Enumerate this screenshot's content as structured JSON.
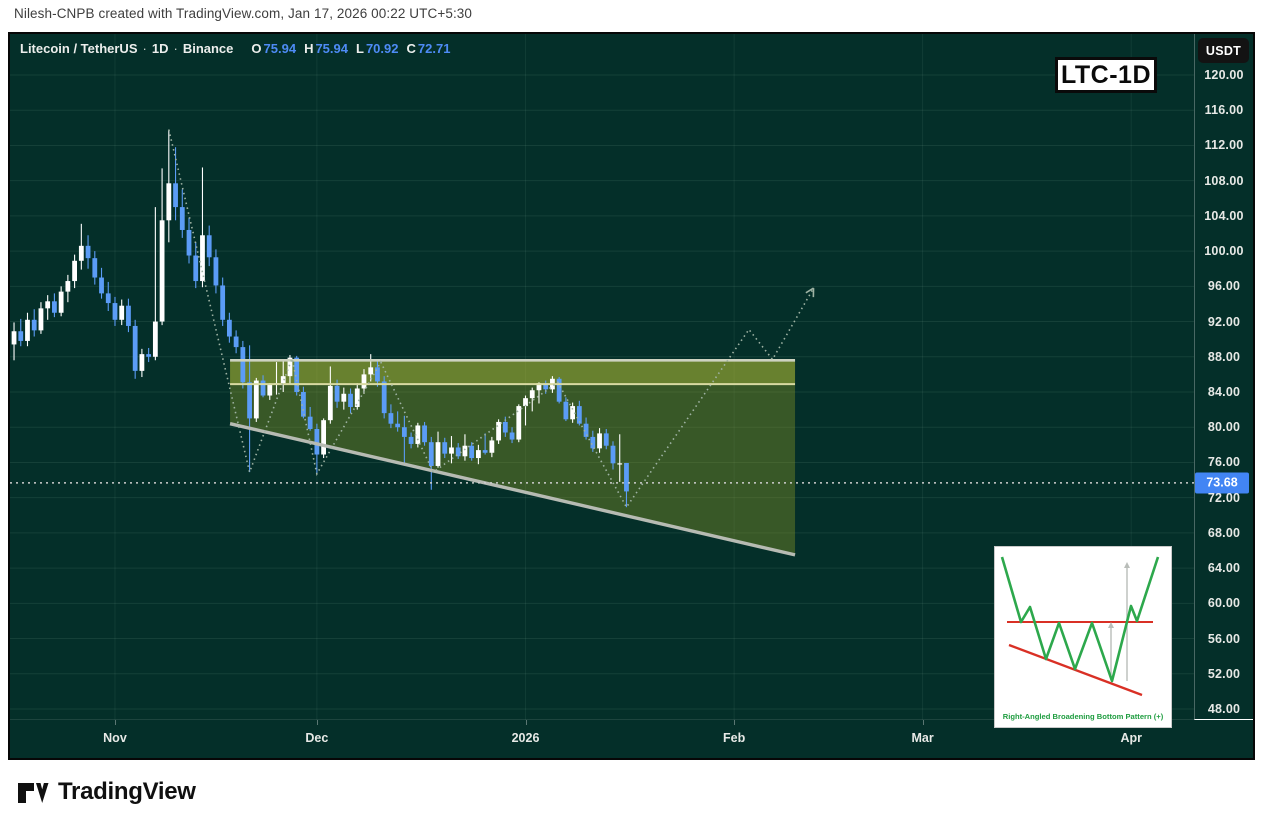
{
  "attribution": "Nilesh-CNPB created with TradingView.com, Jan 17, 2026 00:22 UTC+5:30",
  "header": {
    "title": "Litecoin / TetherUS",
    "separator": "·",
    "interval": "1D",
    "exchange": "Binance",
    "ohlc": [
      {
        "label": "O",
        "value": "75.94"
      },
      {
        "label": "H",
        "value": "75.94"
      },
      {
        "label": "L",
        "value": "70.92"
      },
      {
        "label": "C",
        "value": "72.71"
      }
    ]
  },
  "badges": {
    "currency_button": "USDT",
    "chart_label": "LTC-1D"
  },
  "price_axis": {
    "ticks": [
      "120.00",
      "116.00",
      "112.00",
      "108.00",
      "104.00",
      "100.00",
      "96.00",
      "92.00",
      "88.00",
      "84.00",
      "80.00",
      "76.00",
      "72.00",
      "68.00",
      "64.00",
      "60.00",
      "56.00",
      "52.00",
      "48.00"
    ],
    "current_price": "73.68"
  },
  "inset": {
    "caption": "Right-Angled Broadening Bottom Pattern (+)"
  },
  "footer": {
    "brand": "TradingView"
  },
  "chart_data": {
    "type": "candlestick",
    "title": "Litecoin / TetherUS · 1D · Binance",
    "y_axis": {
      "min": 48,
      "max": 120,
      "tick_step": 4,
      "unit": "USDT"
    },
    "x_axis": {
      "labels": [
        "Nov",
        "Dec",
        "2026",
        "Feb",
        "Mar",
        "Apr"
      ],
      "candle_index": [
        16,
        46,
        77,
        108,
        136,
        167
      ]
    },
    "current_price": 73.68,
    "colors": {
      "up": "#ffffff",
      "down": "#5b9cf6",
      "background": "#042f29",
      "zone_upper": "rgba(187,196,52,0.55)",
      "zone_lower": "rgba(150,160,35,0.36)",
      "resistance_top": "#cdd2c0",
      "resistance_inner": "#d8daa2",
      "support": "#b7bbb3",
      "zigzag": "#9fb3a4",
      "price_line": "#cfcfcf"
    },
    "candles": [
      [
        95.9,
        96.5,
        83.4,
        89.4
      ],
      [
        89.4,
        91.9,
        87.6,
        90.9
      ],
      [
        90.9,
        92.3,
        89.2,
        89.8
      ],
      [
        89.8,
        93.0,
        89.2,
        92.2
      ],
      [
        92.2,
        93.4,
        90.3,
        91.0
      ],
      [
        91.0,
        94.2,
        90.6,
        93.5
      ],
      [
        93.5,
        95.0,
        92.2,
        94.3
      ],
      [
        94.3,
        95.2,
        92.5,
        93.0
      ],
      [
        93.0,
        96.0,
        92.6,
        95.4
      ],
      [
        95.4,
        97.3,
        94.2,
        96.6
      ],
      [
        96.6,
        99.6,
        95.8,
        98.9
      ],
      [
        98.9,
        103.1,
        97.9,
        100.6
      ],
      [
        100.6,
        101.8,
        98.0,
        99.2
      ],
      [
        99.2,
        100.0,
        96.2,
        97.0
      ],
      [
        97.0,
        98.1,
        94.6,
        95.2
      ],
      [
        95.2,
        96.5,
        93.2,
        94.1
      ],
      [
        94.1,
        94.8,
        91.5,
        92.2
      ],
      [
        92.2,
        94.5,
        91.6,
        93.8
      ],
      [
        93.8,
        94.6,
        90.8,
        91.5
      ],
      [
        91.5,
        92.2,
        85.5,
        86.4
      ],
      [
        86.4,
        88.9,
        85.7,
        88.3
      ],
      [
        88.3,
        89.0,
        87.4,
        88.0
      ],
      [
        88.0,
        105.0,
        87.6,
        92.0
      ],
      [
        92.0,
        109.4,
        91.6,
        103.5
      ],
      [
        103.5,
        113.8,
        101.0,
        107.7
      ],
      [
        107.7,
        111.8,
        103.5,
        105.0
      ],
      [
        105.0,
        107.0,
        101.5,
        102.4
      ],
      [
        102.4,
        103.8,
        98.6,
        99.5
      ],
      [
        99.5,
        101.0,
        95.8,
        96.6
      ],
      [
        96.6,
        109.5,
        95.9,
        101.8
      ],
      [
        101.8,
        102.9,
        98.3,
        99.3
      ],
      [
        99.3,
        100.2,
        95.2,
        96.1
      ],
      [
        96.1,
        97.0,
        91.5,
        92.2
      ],
      [
        92.2,
        93.0,
        89.6,
        90.3
      ],
      [
        90.3,
        91.0,
        88.4,
        89.1
      ],
      [
        89.1,
        89.8,
        84.4,
        85.1
      ],
      [
        85.1,
        89.3,
        74.9,
        81.0
      ],
      [
        81.0,
        85.6,
        80.6,
        85.3
      ],
      [
        85.3,
        85.9,
        83.4,
        83.6
      ],
      [
        83.6,
        85.0,
        83.1,
        84.8
      ],
      [
        84.8,
        87.4,
        83.7,
        85.0
      ],
      [
        85.0,
        87.6,
        84.0,
        85.8
      ],
      [
        85.8,
        88.2,
        84.9,
        87.9
      ],
      [
        87.9,
        88.1,
        83.6,
        84.0
      ],
      [
        84.0,
        84.6,
        81.0,
        81.2
      ],
      [
        81.2,
        82.3,
        79.6,
        79.8
      ],
      [
        79.8,
        80.4,
        74.7,
        76.9
      ],
      [
        76.9,
        81.0,
        76.5,
        80.8
      ],
      [
        80.8,
        86.9,
        80.4,
        84.7
      ],
      [
        84.7,
        85.4,
        82.2,
        82.9
      ],
      [
        82.9,
        84.5,
        82.0,
        83.8
      ],
      [
        83.8,
        84.4,
        81.6,
        82.3
      ],
      [
        82.3,
        85.0,
        82.0,
        84.4
      ],
      [
        84.4,
        86.6,
        83.8,
        86.0
      ],
      [
        86.0,
        88.3,
        85.2,
        86.8
      ],
      [
        86.8,
        87.6,
        84.6,
        85.2
      ],
      [
        85.2,
        85.8,
        81.0,
        81.6
      ],
      [
        81.6,
        82.6,
        79.9,
        80.4
      ],
      [
        80.4,
        81.8,
        79.5,
        80.0
      ],
      [
        80.0,
        81.3,
        75.7,
        78.9
      ],
      [
        78.9,
        79.4,
        77.6,
        78.1
      ],
      [
        78.1,
        80.5,
        77.7,
        80.2
      ],
      [
        80.2,
        80.6,
        77.9,
        78.3
      ],
      [
        78.3,
        78.9,
        72.9,
        75.6
      ],
      [
        75.6,
        79.5,
        75.4,
        78.3
      ],
      [
        78.3,
        78.8,
        76.5,
        77.0
      ],
      [
        77.0,
        79.0,
        75.9,
        77.7
      ],
      [
        77.7,
        78.2,
        76.4,
        76.7
      ],
      [
        76.7,
        79.2,
        76.2,
        77.9
      ],
      [
        77.9,
        78.3,
        76.2,
        76.5
      ],
      [
        76.5,
        78.0,
        75.8,
        77.4
      ],
      [
        77.4,
        79.3,
        76.9,
        77.1
      ],
      [
        77.1,
        78.9,
        76.6,
        78.5
      ],
      [
        78.5,
        80.9,
        78.1,
        80.6
      ],
      [
        80.6,
        81.2,
        78.9,
        79.4
      ],
      [
        79.4,
        80.0,
        78.2,
        78.6
      ],
      [
        78.6,
        82.6,
        78.3,
        82.4
      ],
      [
        82.4,
        83.6,
        80.2,
        83.3
      ],
      [
        83.3,
        84.5,
        81.8,
        84.2
      ],
      [
        84.2,
        85.1,
        82.7,
        85.0
      ],
      [
        85.0,
        85.3,
        83.8,
        84.3
      ],
      [
        84.3,
        85.8,
        83.9,
        85.5
      ],
      [
        85.5,
        85.7,
        82.7,
        82.9
      ],
      [
        82.9,
        83.4,
        80.7,
        80.9
      ],
      [
        80.9,
        82.8,
        80.5,
        82.4
      ],
      [
        82.4,
        83.0,
        80.2,
        80.4
      ],
      [
        80.4,
        81.1,
        78.6,
        78.9
      ],
      [
        78.9,
        79.6,
        77.2,
        77.6
      ],
      [
        77.6,
        79.9,
        77.1,
        79.3
      ],
      [
        79.3,
        79.8,
        77.5,
        77.9
      ],
      [
        77.9,
        78.4,
        75.2,
        75.9
      ],
      [
        75.9,
        79.2,
        73.8,
        75.9
      ],
      [
        75.94,
        75.94,
        70.92,
        72.71
      ]
    ],
    "pattern": {
      "name": "Right-Angled Broadening Bottom",
      "resistance_zone": {
        "top_price": 87.6,
        "inner_price": 84.9,
        "start_index": 33.1,
        "end_index": 117.05
      },
      "support_trendline": {
        "start_index": 33.1,
        "start_price": 80.4,
        "end_index": 117.05,
        "end_price": 65.5
      },
      "zigzag": [
        [
          24,
          113.8
        ],
        [
          36,
          74.9
        ],
        [
          42.3,
          87.8
        ],
        [
          46,
          74.7
        ],
        [
          55.5,
          87.4
        ],
        [
          63.3,
          74.9
        ],
        [
          81.8,
          85.1
        ],
        [
          92,
          70.92
        ],
        [
          110.2,
          91.1
        ],
        [
          113.7,
          87.7
        ],
        [
          119.8,
          95.8
        ]
      ]
    }
  }
}
